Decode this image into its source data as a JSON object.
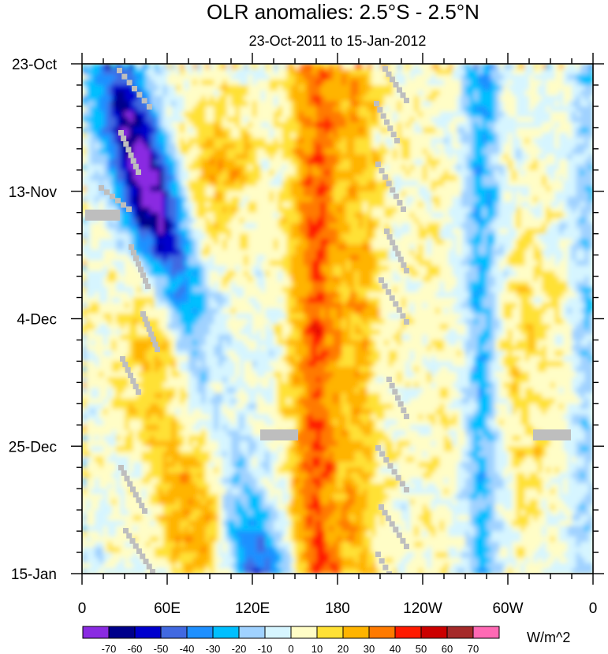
{
  "chart_data": {
    "type": "heatmap",
    "title": "OLR anomalies: 2.5°S - 2.5°N",
    "subtitle": "23-Oct-2011 to 15-Jan-2012",
    "x_ticks": [
      "0",
      "60E",
      "120E",
      "180",
      "120W",
      "60W",
      "0"
    ],
    "x_range_deg_east": [
      0,
      360
    ],
    "y_ticks": [
      "23-Oct",
      "13-Nov",
      "4-Dec",
      "25-Dec",
      "15-Jan"
    ],
    "y_range": [
      "23-Oct-2011",
      "15-Jan-2012"
    ],
    "y_direction": "time increases downward",
    "colorbar": {
      "units": "W/m^2",
      "levels": [
        "-70",
        "-60",
        "-50",
        "-40",
        "-30",
        "-20",
        "-10",
        "0",
        "10",
        "20",
        "30",
        "40",
        "50",
        "60",
        "70"
      ],
      "colors": [
        "#8a2be2",
        "#00008b",
        "#0000cd",
        "#4169e1",
        "#1e90ff",
        "#00bfff",
        "#a0d2ff",
        "#d6f5ff",
        "#fffdc6",
        "#ffe135",
        "#ffb400",
        "#ff7a00",
        "#ff1a00",
        "#cc0000",
        "#a52a2a",
        "#ff69b4"
      ]
    },
    "missing_color": "#bebebe",
    "notable_features": [
      "Persistent positive anomalies (30 to 60 W/m^2) along 150E-180 throughout the period",
      "Negative anomalies (-30 to -70 W/m^2) propagating eastward from Indian Ocean (60E-120E) to ~150E",
      "Weak positive anomalies (0-10 W/m^2) over 150W-90W",
      "Alternating negative/positive anomalies near 90W-60W"
    ]
  }
}
